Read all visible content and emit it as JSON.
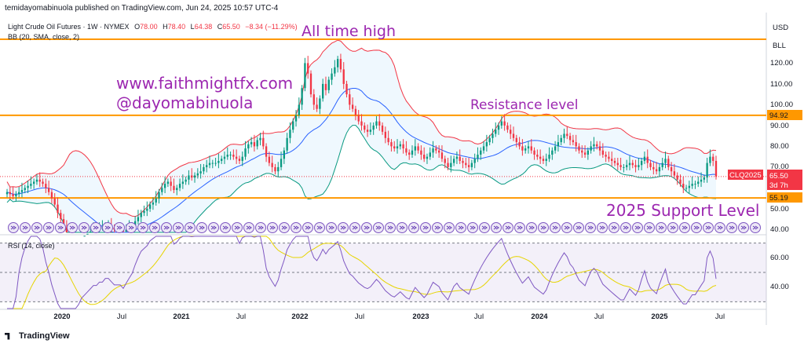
{
  "header": {
    "published_by": "temidayomabinuola published on TradingView.com, Jun 24, 2025 10:57 UTC-4"
  },
  "legend": {
    "symbol": "Light Crude Oil Futures · 1W · NYMEX",
    "o_label": "O",
    "o_value": "78.00",
    "h_label": "H",
    "h_value": "78.40",
    "l_label": "L",
    "l_value": "64.38",
    "c_label": "C",
    "c_value": "65.50",
    "change": "−8.34 (−11.29%)",
    "bb": "BB (20, SMA, close, 2)",
    "rsi": "RSI (14, close)"
  },
  "axis": {
    "currency": "USD",
    "unit": "BLL",
    "price_ticks": [
      "120.00",
      "110.00",
      "100.00",
      "90.00",
      "80.00",
      "70.00",
      "50.00",
      "40.00"
    ],
    "rsi_ticks": [
      "60.00",
      "40.00"
    ],
    "time_ticks": [
      "2020",
      "Jul",
      "2021",
      "Jul",
      "2022",
      "Jul",
      "2023",
      "Jul",
      "2024",
      "Jul",
      "2025",
      "Jul"
    ]
  },
  "price_labels": {
    "resistance": "94.92",
    "current_symbol": "CLQ2025",
    "current": "65.50",
    "countdown": "3d 7h",
    "support": "55.19"
  },
  "annotations": {
    "all_time_high": "All time high",
    "website": "www.faithmightfx.com",
    "handle": "@dayomabinuola",
    "resistance": "Resistance level",
    "support": "2025 Support Level"
  },
  "footer": {
    "brand": "TradingView"
  },
  "colors": {
    "bull": "#089981",
    "bear": "#f23645",
    "level": "#ff9800",
    "bb_upper": "#f23645",
    "bb_lower": "#089981",
    "bb_basis": "#2962ff",
    "rsi": "#7e57c2",
    "rsi_ma": "#e6d400",
    "annotation": "#9c27b0"
  },
  "chart_data": {
    "type": "candlestick",
    "timeframe": "1W",
    "price_range": [
      38,
      130
    ],
    "rsi_range": [
      25,
      75
    ],
    "levels": [
      94.92,
      55.19
    ],
    "all_time_high_level": 130,
    "bb_period": 20,
    "rsi_period": 14,
    "closes": [
      58,
      57,
      56,
      57,
      58,
      59,
      60,
      61,
      62,
      63,
      64,
      63,
      62,
      60,
      58,
      55,
      52,
      48,
      45,
      41,
      33,
      28,
      30,
      32,
      34,
      36,
      37,
      38,
      39,
      40,
      40,
      41,
      41,
      42,
      42,
      41,
      40,
      40,
      40,
      39,
      40,
      41,
      42,
      44,
      46,
      48,
      49,
      50,
      52,
      53,
      55,
      58,
      60,
      62,
      63,
      61,
      59,
      60,
      62,
      63,
      64,
      66,
      65,
      66,
      67,
      68,
      70,
      71,
      72,
      72,
      72,
      73,
      74,
      75,
      76,
      76,
      75,
      74,
      73,
      75,
      79,
      81,
      82,
      80,
      83,
      84,
      80,
      75,
      72,
      70,
      68,
      70,
      74,
      78,
      84,
      88,
      92,
      95,
      100,
      108,
      120,
      115,
      105,
      100,
      98,
      103,
      110,
      107,
      112,
      115,
      118,
      122,
      117,
      110,
      105,
      100,
      98,
      95,
      92,
      90,
      88,
      87,
      88,
      90,
      92,
      90,
      87,
      84,
      82,
      80,
      79,
      80,
      81,
      79,
      77,
      76,
      78,
      80,
      78,
      76,
      74,
      75,
      77,
      79,
      78,
      77,
      74,
      72,
      70,
      72,
      74,
      75,
      73,
      72,
      71,
      70,
      72,
      74,
      76,
      78,
      80,
      82,
      84,
      86,
      88,
      90,
      92,
      90,
      88,
      86,
      84,
      82,
      80,
      78,
      79,
      80,
      78,
      76,
      75,
      74,
      73,
      74,
      76,
      78,
      80,
      82,
      84,
      86,
      85,
      83,
      82,
      80,
      78,
      77,
      76,
      78,
      80,
      81,
      80,
      78,
      76,
      75,
      74,
      73,
      72,
      71,
      70,
      70,
      71,
      72,
      71,
      70,
      71,
      73,
      75,
      72,
      70,
      69,
      68,
      70,
      72,
      74,
      70,
      68,
      66,
      64,
      62,
      60,
      60,
      61,
      62,
      62,
      63,
      64,
      65,
      72,
      75,
      73,
      65.5
    ]
  }
}
